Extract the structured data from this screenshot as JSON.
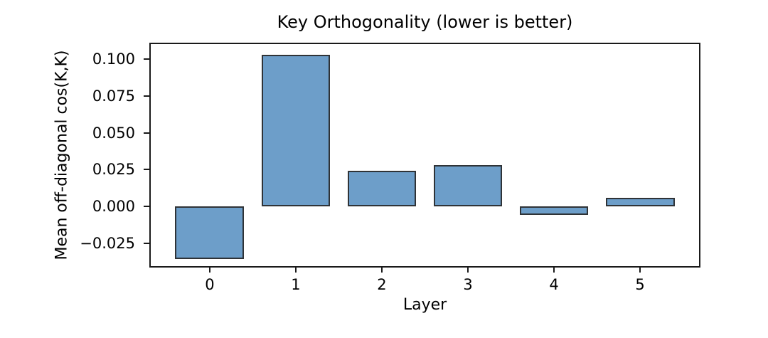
{
  "chart_data": {
    "type": "bar",
    "title": "Key Orthogonality (lower is better)",
    "xlabel": "Layer",
    "ylabel": "Mean off-diagonal cos(K,K)",
    "categories": [
      "0",
      "1",
      "2",
      "3",
      "4",
      "5"
    ],
    "values": [
      -0.036,
      0.103,
      0.024,
      0.028,
      -0.006,
      0.006
    ],
    "yticks": [
      0.1,
      0.075,
      0.05,
      0.025,
      0.0,
      -0.025
    ],
    "ytick_labels": [
      "0.100",
      "0.075",
      "0.050",
      "0.025",
      "0.000",
      "−0.025"
    ],
    "ylim": [
      -0.0407,
      0.1103
    ],
    "xlim": [
      -0.685,
      5.685
    ],
    "bar_width": 0.8,
    "grid": false,
    "colors": {
      "bar_fill": "#6d9ec9",
      "bar_edge": "#2f3337",
      "spine": "#1a1a1a",
      "text": "#000000",
      "background": "#ffffff"
    }
  }
}
